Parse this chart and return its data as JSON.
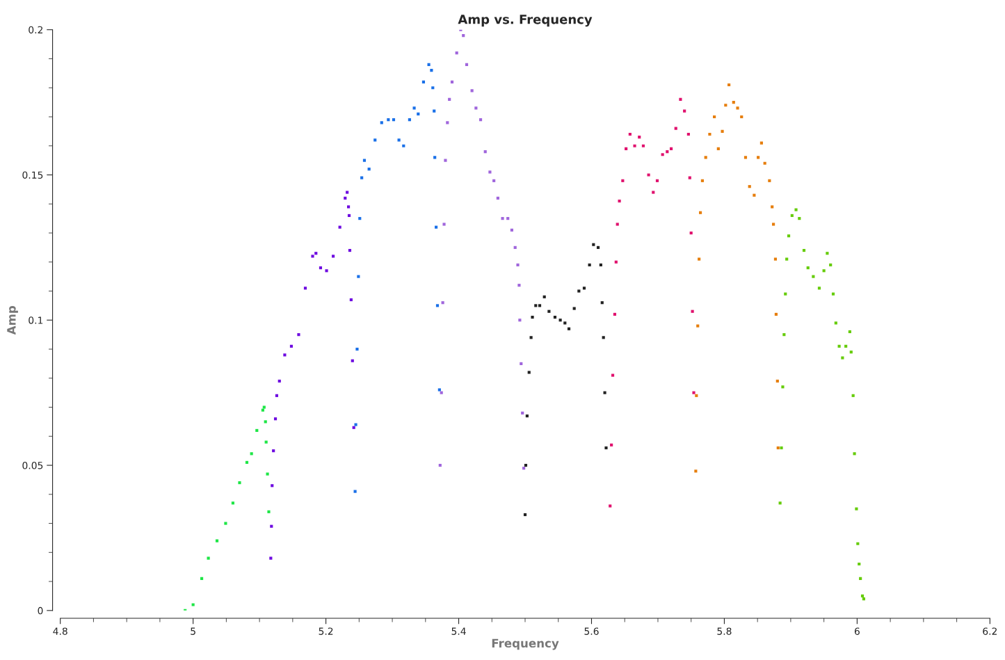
{
  "chart_data": {
    "type": "scatter",
    "title": "Amp vs. Frequency",
    "xlabel": "Frequency",
    "ylabel": "Amp",
    "xlim": [
      4.8,
      6.2
    ],
    "ylim": [
      0,
      0.2
    ],
    "xticks": [
      4.8,
      {
        "value": 4.85,
        "label": null
      },
      {
        "value": 4.9,
        "label": null
      },
      {
        "value": 4.95,
        "label": null
      },
      5,
      {
        "value": 5.05,
        "label": null
      },
      {
        "value": 5.1,
        "label": null
      },
      {
        "value": 5.15,
        "label": null
      },
      5.2,
      {
        "value": 5.25,
        "label": null
      },
      {
        "value": 5.3,
        "label": null
      },
      {
        "value": 5.35,
        "label": null
      },
      5.4,
      {
        "value": 5.45,
        "label": null
      },
      {
        "value": 5.5,
        "label": null
      },
      {
        "value": 5.55,
        "label": null
      },
      5.6,
      {
        "value": 5.65,
        "label": null
      },
      {
        "value": 5.7,
        "label": null
      },
      {
        "value": 5.75,
        "label": null
      },
      5.8,
      {
        "value": 5.85,
        "label": null
      },
      {
        "value": 5.9,
        "label": null
      },
      {
        "value": 5.95,
        "label": null
      },
      6,
      {
        "value": 6.05,
        "label": null
      },
      {
        "value": 6.1,
        "label": null
      },
      {
        "value": 6.15,
        "label": null
      },
      6.2
    ],
    "yticks": [
      0,
      {
        "value": 0.01,
        "label": null
      },
      {
        "value": 0.02,
        "label": null
      },
      {
        "value": 0.03,
        "label": null
      },
      {
        "value": 0.04,
        "label": null
      },
      0.05,
      {
        "value": 0.06,
        "label": null
      },
      {
        "value": 0.07,
        "label": null
      },
      {
        "value": 0.08,
        "label": null
      },
      {
        "value": 0.09,
        "label": null
      },
      0.1,
      {
        "value": 0.11,
        "label": null
      },
      {
        "value": 0.12,
        "label": null
      },
      {
        "value": 0.13,
        "label": null
      },
      {
        "value": 0.14,
        "label": null
      },
      0.15,
      {
        "value": 0.16,
        "label": null
      },
      {
        "value": 0.17,
        "label": null
      },
      {
        "value": 0.18,
        "label": null
      },
      {
        "value": 0.19,
        "label": null
      },
      0.2
    ],
    "grid": false,
    "legend": false,
    "marker": "square",
    "series": [
      {
        "color": "#1ee646",
        "x": [
          4.988,
          5.0,
          5.013,
          5.023,
          5.036,
          5.049,
          5.06,
          5.07,
          5.081,
          5.088,
          5.096,
          5.105,
          5.107,
          5.109,
          5.11,
          5.112,
          5.114
        ],
        "values": [
          0,
          0.002,
          0.011,
          0.018,
          0.024,
          0.03,
          0.037,
          0.044,
          0.051,
          0.054,
          0.062,
          0.069,
          0.07,
          0.065,
          0.058,
          0.047,
          0.034
        ]
      },
      {
        "color": "#6e0ae0",
        "x": [
          5.117,
          5.118,
          5.119,
          5.121,
          5.124,
          5.126,
          5.13,
          5.138,
          5.148,
          5.159,
          5.169,
          5.18,
          5.185,
          5.192,
          5.201,
          5.211,
          5.221,
          5.229,
          5.232,
          5.234,
          5.235,
          5.236,
          5.238,
          5.24,
          5.242
        ],
        "values": [
          0.018,
          0.029,
          0.043,
          0.055,
          0.066,
          0.074,
          0.079,
          0.088,
          0.091,
          0.095,
          0.111,
          0.122,
          0.123,
          0.118,
          0.117,
          0.122,
          0.132,
          0.142,
          0.144,
          0.139,
          0.136,
          0.124,
          0.107,
          0.086,
          0.063
        ]
      },
      {
        "color": "#1a70e8",
        "x": [
          5.244,
          5.245,
          5.247,
          5.249,
          5.251,
          5.254,
          5.258,
          5.265,
          5.274,
          5.284,
          5.294,
          5.302,
          5.31,
          5.317,
          5.326,
          5.333,
          5.339,
          5.347,
          5.355,
          5.359,
          5.361,
          5.363,
          5.364,
          5.366,
          5.368,
          5.371
        ],
        "values": [
          0.041,
          0.064,
          0.09,
          0.115,
          0.135,
          0.149,
          0.155,
          0.152,
          0.162,
          0.168,
          0.169,
          0.169,
          0.162,
          0.16,
          0.169,
          0.173,
          0.171,
          0.182,
          0.188,
          0.186,
          0.18,
          0.172,
          0.156,
          0.132,
          0.105,
          0.076
        ]
      },
      {
        "color": "#a066dc",
        "x": [
          5.372,
          5.374,
          5.376,
          5.378,
          5.38,
          5.383,
          5.386,
          5.39,
          5.397,
          5.403,
          5.407,
          5.412,
          5.42,
          5.426,
          5.433,
          5.44,
          5.447,
          5.453,
          5.459,
          5.466,
          5.474,
          5.48,
          5.485,
          5.489,
          5.491,
          5.492,
          5.494,
          5.496,
          5.498
        ],
        "values": [
          0.05,
          0.075,
          0.106,
          0.133,
          0.155,
          0.168,
          0.176,
          0.182,
          0.192,
          0.2,
          0.198,
          0.188,
          0.179,
          0.173,
          0.169,
          0.158,
          0.151,
          0.148,
          0.142,
          0.135,
          0.135,
          0.131,
          0.125,
          0.119,
          0.112,
          0.1,
          0.085,
          0.068,
          0.049
        ]
      },
      {
        "color": "#222222",
        "x": [
          5.5,
          5.501,
          5.503,
          5.506,
          5.509,
          5.511,
          5.516,
          5.522,
          5.529,
          5.536,
          5.545,
          5.553,
          5.56,
          5.566,
          5.574,
          5.581,
          5.589,
          5.597,
          5.603,
          5.61,
          5.614,
          5.616,
          5.618,
          5.62,
          5.622
        ],
        "values": [
          0.033,
          0.05,
          0.067,
          0.082,
          0.094,
          0.101,
          0.105,
          0.105,
          0.108,
          0.103,
          0.101,
          0.1,
          0.099,
          0.097,
          0.104,
          0.11,
          0.111,
          0.119,
          0.126,
          0.125,
          0.119,
          0.106,
          0.094,
          0.075,
          0.056
        ]
      },
      {
        "color": "#e0126e",
        "x": [
          5.628,
          5.63,
          5.632,
          5.635,
          5.637,
          5.639,
          5.642,
          5.647,
          5.652,
          5.658,
          5.665,
          5.672,
          5.678,
          5.686,
          5.693,
          5.699,
          5.707,
          5.714,
          5.72,
          5.727,
          5.734,
          5.74,
          5.746,
          5.748,
          5.75,
          5.752,
          5.754
        ],
        "values": [
          0.036,
          0.057,
          0.081,
          0.102,
          0.12,
          0.133,
          0.141,
          0.148,
          0.159,
          0.164,
          0.16,
          0.163,
          0.16,
          0.15,
          0.144,
          0.148,
          0.157,
          0.158,
          0.159,
          0.166,
          0.176,
          0.172,
          0.164,
          0.149,
          0.13,
          0.103,
          0.075
        ]
      },
      {
        "color": "#e67e0c",
        "x": [
          5.757,
          5.758,
          5.76,
          5.762,
          5.764,
          5.767,
          5.772,
          5.778,
          5.785,
          5.791,
          5.797,
          5.802,
          5.807,
          5.814,
          5.82,
          5.826,
          5.832,
          5.838,
          5.845,
          5.851,
          5.856,
          5.861,
          5.868,
          5.872,
          5.874,
          5.877,
          5.878,
          5.88,
          5.881
        ],
        "values": [
          0.048,
          0.074,
          0.098,
          0.121,
          0.137,
          0.148,
          0.156,
          0.164,
          0.17,
          0.159,
          0.165,
          0.174,
          0.181,
          0.175,
          0.173,
          0.17,
          0.156,
          0.146,
          0.143,
          0.156,
          0.161,
          0.154,
          0.148,
          0.139,
          0.133,
          0.121,
          0.102,
          0.079,
          0.056
        ]
      },
      {
        "color": "#66cc0a",
        "x": [
          5.884,
          5.886,
          5.888,
          5.89,
          5.892,
          5.894,
          5.897,
          5.902,
          5.908,
          5.913,
          5.92,
          5.926,
          5.934,
          5.943,
          5.95,
          5.955,
          5.96,
          5.964,
          5.968,
          5.973,
          5.978,
          5.983,
          5.989,
          5.991,
          5.994,
          5.996,
          5.999,
          6.001,
          6.003,
          6.005,
          6.008,
          6.01
        ],
        "values": [
          0.037,
          0.056,
          0.077,
          0.095,
          0.109,
          0.121,
          0.129,
          0.136,
          0.138,
          0.135,
          0.124,
          0.118,
          0.115,
          0.111,
          0.117,
          0.123,
          0.119,
          0.109,
          0.099,
          0.091,
          0.087,
          0.091,
          0.096,
          0.089,
          0.074,
          0.054,
          0.035,
          0.023,
          0.016,
          0.011,
          0.005,
          0.004
        ]
      }
    ]
  }
}
